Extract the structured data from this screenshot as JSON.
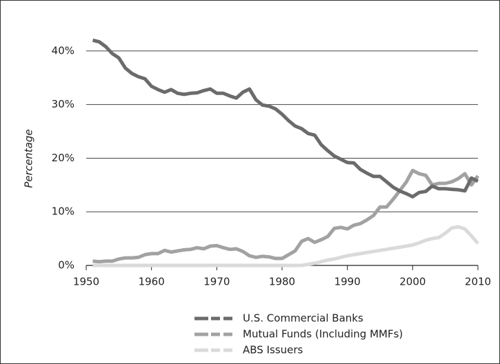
{
  "chart_data": {
    "type": "line",
    "y_label": "Percentage",
    "x": [
      1951,
      1952,
      1953,
      1954,
      1955,
      1956,
      1957,
      1958,
      1959,
      1960,
      1961,
      1962,
      1963,
      1964,
      1965,
      1966,
      1967,
      1968,
      1969,
      1970,
      1971,
      1972,
      1973,
      1974,
      1975,
      1976,
      1977,
      1978,
      1979,
      1980,
      1981,
      1982,
      1983,
      1984,
      1985,
      1986,
      1987,
      1988,
      1989,
      1990,
      1991,
      1992,
      1993,
      1994,
      1995,
      1996,
      1997,
      1998,
      1999,
      2000,
      2001,
      2002,
      2003,
      2004,
      2005,
      2006,
      2007,
      2008,
      2009,
      2010
    ],
    "series": [
      {
        "name": "U.S. Commercial Banks",
        "color": "#6b6b6b",
        "values": [
          42,
          41.7,
          40.8,
          39.5,
          38.7,
          36.8,
          35.8,
          35.2,
          34.8,
          33.4,
          32.8,
          32.3,
          32.8,
          32.1,
          31.9,
          32.1,
          32.2,
          32.6,
          32.9,
          32.1,
          32.1,
          31.6,
          31.2,
          32.3,
          32.9,
          30.9,
          29.9,
          29.7,
          29.2,
          28.2,
          27.0,
          26.0,
          25.5,
          24.6,
          24.3,
          22.5,
          21.4,
          20.4,
          19.8,
          19.2,
          19.1,
          17.9,
          17.2,
          16.6,
          16.6,
          15.6,
          14.6,
          13.9,
          13.4,
          12.8,
          13.6,
          13.8,
          14.8,
          14.3,
          14.3,
          14.2,
          14.1,
          13.9,
          16.3,
          15.7
        ]
      },
      {
        "name": "Mutual Funds (Including MMFs)",
        "color": "#a2a2a2",
        "values": [
          0.8,
          0.7,
          0.8,
          0.8,
          1.2,
          1.4,
          1.4,
          1.5,
          2.0,
          2.2,
          2.2,
          2.8,
          2.5,
          2.7,
          2.9,
          3.0,
          3.3,
          3.1,
          3.6,
          3.7,
          3.3,
          3.0,
          3.1,
          2.6,
          1.8,
          1.5,
          1.7,
          1.6,
          1.3,
          1.3,
          2.0,
          2.7,
          4.5,
          5.0,
          4.3,
          4.8,
          5.4,
          6.9,
          7.1,
          6.8,
          7.5,
          7.8,
          8.5,
          9.3,
          10.9,
          10.9,
          12.3,
          13.9,
          15.5,
          17.7,
          17.1,
          16.8,
          15.0,
          15.3,
          15.3,
          15.6,
          16.2,
          17.1,
          15.0,
          16.7
        ]
      },
      {
        "name": "ABS Issuers",
        "color": "#dadada",
        "values": [
          0,
          0,
          0,
          0,
          0,
          0,
          0,
          0,
          0,
          0,
          0,
          0,
          0,
          0,
          0,
          0,
          0,
          0,
          0,
          0,
          0,
          0,
          0,
          0,
          0,
          0,
          0,
          0,
          0,
          0,
          0,
          0,
          0,
          0.2,
          0.4,
          0.7,
          1.0,
          1.2,
          1.5,
          1.8,
          2.0,
          2.2,
          2.4,
          2.6,
          2.8,
          3.0,
          3.2,
          3.4,
          3.6,
          3.8,
          4.2,
          4.7,
          5.0,
          5.2,
          6.0,
          7.0,
          7.2,
          6.8,
          5.5,
          4.1
        ]
      }
    ],
    "xlim": [
      1950,
      2010
    ],
    "xticks": [
      1950,
      1960,
      1970,
      1980,
      1990,
      2000,
      2010
    ],
    "ylim": [
      0,
      45
    ],
    "yticks": [
      {
        "value": 0,
        "label": "0%"
      },
      {
        "value": 10,
        "label": "10%"
      },
      {
        "value": 20,
        "label": "20%"
      },
      {
        "value": 30,
        "label": "30%"
      },
      {
        "value": 40,
        "label": "40%"
      }
    ],
    "grid": true,
    "legend": "bottom"
  }
}
